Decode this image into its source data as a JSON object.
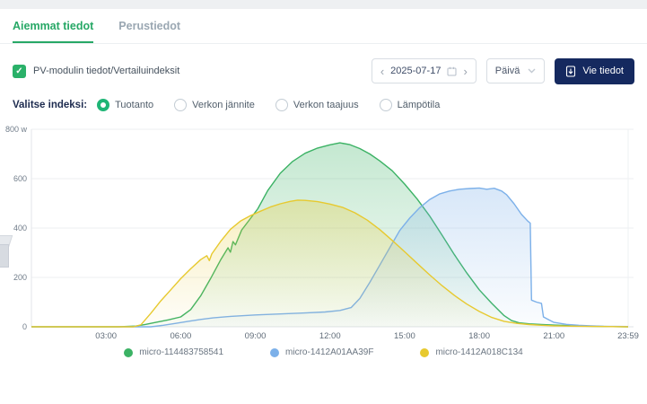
{
  "tabs": {
    "active": "Aiemmat tiedot",
    "inactive": "Perustiedot"
  },
  "filters": {
    "checkbox_label": "PV-modulin tiedot/Vertailuindeksit",
    "checkbox_checked": "✓",
    "index_label": "Valitse indeksi:",
    "options": [
      {
        "label": "Tuotanto",
        "selected": true
      },
      {
        "label": "Verkon jännite",
        "selected": false
      },
      {
        "label": "Verkon taajuus",
        "selected": false
      },
      {
        "label": "Lämpötila",
        "selected": false
      }
    ]
  },
  "toolbar": {
    "prev_label": "‹",
    "next_label": "›",
    "date": "2025-07-17",
    "period": "Päivä",
    "export_label": "Vie tiedot"
  },
  "chart_data": {
    "type": "area",
    "unit": "W",
    "xlim_hours": [
      0,
      23.983
    ],
    "ylim": [
      0,
      800
    ],
    "grid": true,
    "legend_position": "bottom",
    "y_ticks": [
      {
        "value": 800,
        "label": "800 w"
      },
      {
        "value": 600,
        "label": "600"
      },
      {
        "value": 400,
        "label": "400"
      },
      {
        "value": 200,
        "label": "200"
      },
      {
        "value": 0,
        "label": "0"
      }
    ],
    "x_ticks": [
      {
        "hour": 3,
        "label": "03:00"
      },
      {
        "hour": 6,
        "label": "06:00"
      },
      {
        "hour": 9,
        "label": "09:00"
      },
      {
        "hour": 12,
        "label": "12:00"
      },
      {
        "hour": 15,
        "label": "15:00"
      },
      {
        "hour": 18,
        "label": "18:00"
      },
      {
        "hour": 21,
        "label": "21:00"
      },
      {
        "hour": 23.983,
        "label": "23:59"
      }
    ],
    "series": [
      {
        "name": "micro-114483758541",
        "color": "#3bb264",
        "points": [
          [
            0,
            0
          ],
          [
            3.5,
            0
          ],
          [
            4.2,
            3
          ],
          [
            4.6,
            10
          ],
          [
            5,
            18
          ],
          [
            5.5,
            28
          ],
          [
            6,
            40
          ],
          [
            6.4,
            70
          ],
          [
            6.8,
            125
          ],
          [
            7.2,
            195
          ],
          [
            7.6,
            270
          ],
          [
            7.9,
            320
          ],
          [
            8,
            302
          ],
          [
            8.1,
            345
          ],
          [
            8.2,
            332
          ],
          [
            8.45,
            392
          ],
          [
            8.8,
            438
          ],
          [
            9.1,
            478
          ],
          [
            9.5,
            552
          ],
          [
            10,
            622
          ],
          [
            10.5,
            670
          ],
          [
            11,
            703
          ],
          [
            11.5,
            724
          ],
          [
            12,
            737
          ],
          [
            12.4,
            745
          ],
          [
            12.8,
            738
          ],
          [
            13.2,
            722
          ],
          [
            13.6,
            700
          ],
          [
            14,
            672
          ],
          [
            14.5,
            632
          ],
          [
            15,
            578
          ],
          [
            15.5,
            518
          ],
          [
            16,
            450
          ],
          [
            16.5,
            372
          ],
          [
            17,
            292
          ],
          [
            17.5,
            218
          ],
          [
            18,
            150
          ],
          [
            18.5,
            95
          ],
          [
            19,
            45
          ],
          [
            19.3,
            25
          ],
          [
            19.6,
            16
          ],
          [
            20,
            12
          ],
          [
            20.5,
            9
          ],
          [
            21,
            7
          ],
          [
            21.5,
            5
          ],
          [
            22,
            3
          ],
          [
            22.5,
            2
          ],
          [
            23.983,
            0
          ]
        ]
      },
      {
        "name": "micro-1412A01AA39F",
        "color": "#7cb0e9",
        "points": [
          [
            0,
            0
          ],
          [
            4.8,
            0
          ],
          [
            5.3,
            6
          ],
          [
            5.8,
            14
          ],
          [
            6.3,
            22
          ],
          [
            6.8,
            30
          ],
          [
            7.3,
            36
          ],
          [
            8,
            42
          ],
          [
            9,
            48
          ],
          [
            10,
            52
          ],
          [
            11,
            56
          ],
          [
            11.8,
            60
          ],
          [
            12.4,
            66
          ],
          [
            12.85,
            78
          ],
          [
            13.2,
            115
          ],
          [
            13.6,
            180
          ],
          [
            14,
            250
          ],
          [
            14.4,
            320
          ],
          [
            14.8,
            390
          ],
          [
            15.2,
            440
          ],
          [
            15.6,
            482
          ],
          [
            16,
            515
          ],
          [
            16.4,
            538
          ],
          [
            16.8,
            550
          ],
          [
            17.2,
            557
          ],
          [
            17.6,
            560
          ],
          [
            18,
            562
          ],
          [
            18.3,
            557
          ],
          [
            18.6,
            561
          ],
          [
            18.9,
            550
          ],
          [
            19.1,
            535
          ],
          [
            19.4,
            498
          ],
          [
            19.7,
            455
          ],
          [
            19.95,
            428
          ],
          [
            20.05,
            420
          ],
          [
            20.1,
            108
          ],
          [
            20.3,
            100
          ],
          [
            20.5,
            95
          ],
          [
            20.58,
            40
          ],
          [
            20.8,
            28
          ],
          [
            21,
            18
          ],
          [
            21.5,
            10
          ],
          [
            22,
            6
          ],
          [
            22.5,
            4
          ],
          [
            23,
            2
          ],
          [
            23.983,
            1
          ]
        ]
      },
      {
        "name": "micro-1412A018C134",
        "color": "#e7c92f",
        "points": [
          [
            0,
            0
          ],
          [
            4.1,
            0
          ],
          [
            4.4,
            8
          ],
          [
            4.8,
            55
          ],
          [
            5.2,
            105
          ],
          [
            5.6,
            150
          ],
          [
            6,
            195
          ],
          [
            6.4,
            235
          ],
          [
            6.8,
            272
          ],
          [
            7.05,
            288
          ],
          [
            7.15,
            268
          ],
          [
            7.25,
            295
          ],
          [
            7.6,
            345
          ],
          [
            8,
            395
          ],
          [
            8.4,
            428
          ],
          [
            8.8,
            450
          ],
          [
            9.2,
            468
          ],
          [
            9.6,
            485
          ],
          [
            10,
            498
          ],
          [
            10.4,
            508
          ],
          [
            10.7,
            513
          ],
          [
            11,
            512
          ],
          [
            11.5,
            507
          ],
          [
            12,
            497
          ],
          [
            12.5,
            484
          ],
          [
            13,
            462
          ],
          [
            13.5,
            432
          ],
          [
            14,
            394
          ],
          [
            14.5,
            350
          ],
          [
            15,
            304
          ],
          [
            15.5,
            257
          ],
          [
            16,
            211
          ],
          [
            16.5,
            167
          ],
          [
            17,
            127
          ],
          [
            17.5,
            92
          ],
          [
            18,
            62
          ],
          [
            18.5,
            38
          ],
          [
            19,
            22
          ],
          [
            19.5,
            14
          ],
          [
            20,
            9
          ],
          [
            20.5,
            6
          ],
          [
            21,
            4
          ],
          [
            21.5,
            3
          ],
          [
            22,
            2
          ],
          [
            23,
            1
          ],
          [
            23.983,
            0
          ]
        ]
      }
    ]
  }
}
